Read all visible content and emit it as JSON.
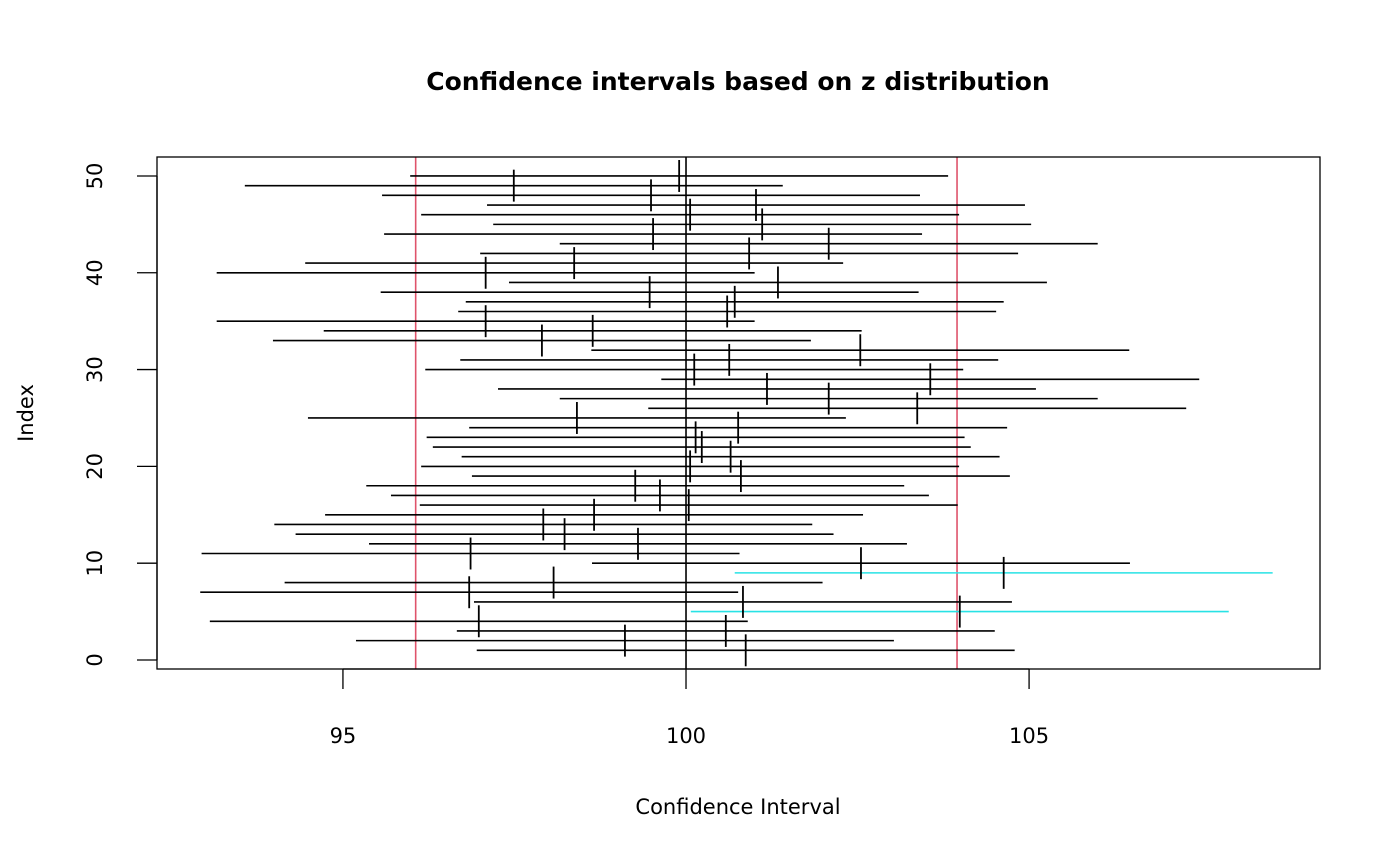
{
  "chart_data": {
    "type": "interval",
    "title": "Confidence intervals based on z distribution",
    "xlabel": "Confidence Interval",
    "ylabel": "Index",
    "xlim": [
      92.29,
      109.24
    ],
    "ylim": [
      -0.93,
      51.96
    ],
    "x_ticks": [
      95,
      100,
      105
    ],
    "y_ticks": [
      0,
      10,
      20,
      30,
      40,
      50
    ],
    "half_width": 3.92,
    "reference_line": 100,
    "true_bounds": [
      96.06,
      103.95
    ],
    "colors": {
      "interval": "#000000",
      "miss": "#28E2E5",
      "bound": "#DF536B",
      "reference": "#000000"
    },
    "means": [
      100.87,
      99.11,
      100.58,
      96.98,
      103.99,
      100.83,
      96.84,
      98.07,
      104.63,
      102.55,
      96.86,
      99.3,
      98.23,
      97.92,
      98.66,
      100.04,
      99.62,
      99.26,
      100.8,
      100.06,
      100.65,
      100.23,
      100.14,
      100.76,
      98.41,
      103.37,
      102.08,
      101.18,
      103.56,
      100.12,
      100.63,
      102.54,
      97.9,
      98.64,
      97.08,
      100.6,
      100.71,
      99.47,
      101.34,
      97.08,
      98.37,
      100.92,
      102.08,
      99.52,
      101.11,
      100.06,
      101.02,
      99.49,
      97.49,
      99.9
    ],
    "misses": [
      5,
      9
    ]
  }
}
